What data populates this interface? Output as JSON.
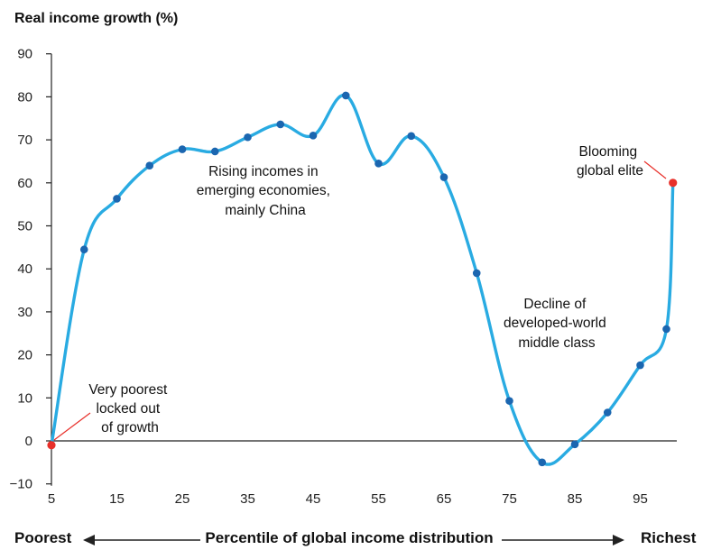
{
  "chart_data": {
    "type": "line",
    "ylabel": "Real income growth (%)",
    "xlabel": "Percentile of global income distribution",
    "left_label": "Poorest",
    "right_label": "Richest",
    "ylim": [
      -10,
      90
    ],
    "yticks": [
      90,
      80,
      70,
      60,
      50,
      40,
      30,
      20,
      10,
      0,
      -10
    ],
    "xlim": [
      5,
      100
    ],
    "xticks": [
      5,
      15,
      25,
      35,
      45,
      55,
      65,
      75,
      85,
      95
    ],
    "grid": false,
    "line_color": "#29ABE2",
    "point_color": "#1B66B0",
    "highlight_color": "#E8302A",
    "series": [
      {
        "name": "Real income growth",
        "x": [
          5,
          10,
          15,
          20,
          25,
          30,
          35,
          40,
          45,
          50,
          55,
          60,
          65,
          70,
          75,
          80,
          85,
          90,
          95,
          99,
          100
        ],
        "y": [
          -1,
          44.5,
          56.3,
          64,
          67.8,
          67.3,
          70.6,
          73.6,
          71,
          80.3,
          64.5,
          70.9,
          61.3,
          39,
          9.3,
          -5,
          -0.8,
          6.6,
          17.6,
          26,
          60
        ]
      }
    ],
    "highlighted_points": [
      {
        "x": 5,
        "y": -1
      },
      {
        "x": 100,
        "y": 60
      }
    ],
    "annotations": [
      {
        "lines": [
          "Very poorest",
          "locked out",
          "of growth"
        ]
      },
      {
        "lines": [
          "Rising incomes in",
          "emerging economies,",
          "mainly China"
        ]
      },
      {
        "lines": [
          "Decline of",
          "developed-world",
          "middle class"
        ]
      },
      {
        "lines": [
          "Blooming",
          "global elite"
        ]
      }
    ]
  }
}
